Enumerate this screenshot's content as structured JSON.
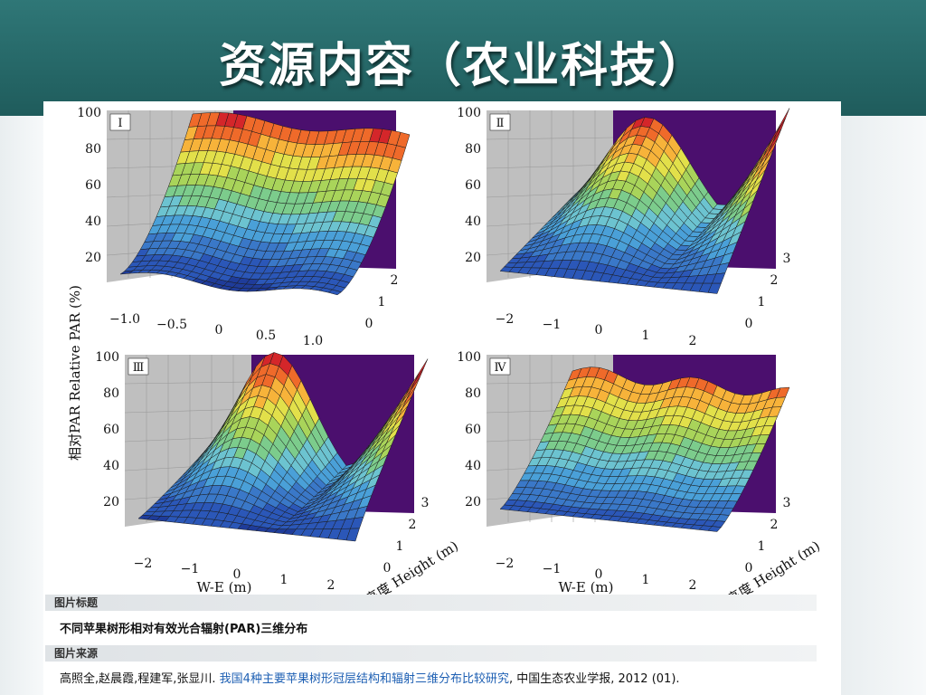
{
  "slide": {
    "title": "资源内容（农业科技）"
  },
  "figure": {
    "caption_label": "图片标题",
    "caption": "不同苹果树形相对有效光合辐射(PAR)三维分布",
    "source_label": "图片来源",
    "source_authors": "高照全,赵晨霞,程建军,张显川. ",
    "source_link": "我国4种主要苹果树形冠层结构和辐射三维分布比较研究",
    "source_tail": ", 中国生态农业学报, 2012 (01)."
  },
  "colors": {
    "band_ramp": [
      "#1f3c9a",
      "#2b57b8",
      "#3a78c8",
      "#4aa0d8",
      "#6cc3d0",
      "#7ccc8c",
      "#a9d45a",
      "#e2e04a",
      "#f7b33a",
      "#ef6a2a",
      "#d4262a"
    ],
    "wall_purple": "#4b0f6e",
    "wall_grey": "#bfbfbf"
  },
  "chart_data": [
    {
      "type": "surface3d",
      "panel": "Ⅰ",
      "ylabel": "相对PAR Relative PAR (%)",
      "z_ticks": [
        "20",
        "40",
        "60",
        "80",
        "100"
      ],
      "x_ticks": [
        "−1.0",
        "−0.5",
        "0",
        "0.5",
        "1.0"
      ],
      "y_ticks": [
        "0",
        "1",
        "2"
      ],
      "zlim": [
        0,
        100
      ]
    },
    {
      "type": "surface3d",
      "panel": "Ⅱ",
      "z_ticks": [
        "20",
        "40",
        "60",
        "80",
        "100"
      ],
      "x_ticks": [
        "−2",
        "−1",
        "0",
        "1",
        "2"
      ],
      "y_ticks": [
        "0",
        "1",
        "2",
        "3"
      ],
      "zlim": [
        0,
        100
      ]
    },
    {
      "type": "surface3d",
      "panel": "Ⅲ",
      "z_ticks": [
        "20",
        "40",
        "60",
        "80",
        "100"
      ],
      "x_ticks": [
        "−2",
        "−1",
        "0",
        "1",
        "2"
      ],
      "y_ticks": [
        "0",
        "1",
        "2",
        "3"
      ],
      "xlabel": "W-E (m)",
      "ylabel": "高度 Height (m)",
      "zlim": [
        0,
        100
      ]
    },
    {
      "type": "surface3d",
      "panel": "Ⅳ",
      "z_ticks": [
        "20",
        "40",
        "60",
        "80",
        "100"
      ],
      "x_ticks": [
        "−2",
        "−1",
        "0",
        "1",
        "2"
      ],
      "y_ticks": [
        "0",
        "1",
        "2",
        "3"
      ],
      "xlabel": "W-E (m)",
      "ylabel": "高度 Height (m)",
      "zlim": [
        0,
        100
      ]
    }
  ]
}
